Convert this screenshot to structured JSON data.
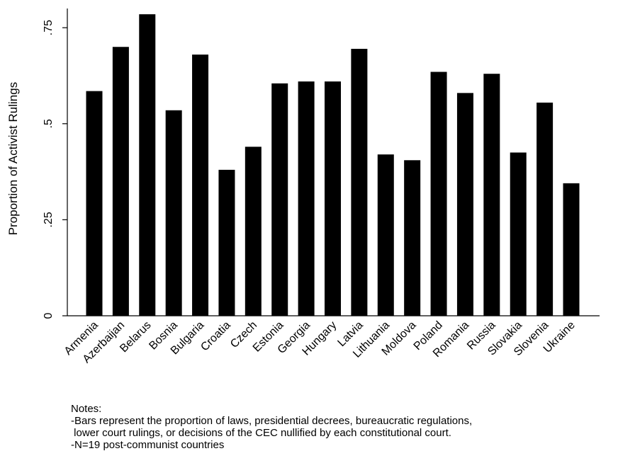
{
  "chart_data": {
    "type": "bar",
    "ylabel": "Proportion of Activist Rulings",
    "xlabel": "",
    "ylim": [
      0,
      0.8
    ],
    "yticks": [
      0,
      0.25,
      0.5,
      0.75
    ],
    "ytick_labels": [
      "0",
      ".25",
      ".5",
      ".75"
    ],
    "grid": false,
    "bar_color": "#000000",
    "categories": [
      "Armenia",
      "Azerbaijan",
      "Belarus",
      "Bosnia",
      "Bulgaria",
      "Croatia",
      "Czech",
      "Estonia",
      "Georgia",
      "Hungary",
      "Latvia",
      "Lithuania",
      "Moldova",
      "Poland",
      "Romania",
      "Russia",
      "Slovakia",
      "Slovenia",
      "Ukraine"
    ],
    "values": [
      0.585,
      0.7,
      0.785,
      0.535,
      0.68,
      0.38,
      0.44,
      0.605,
      0.61,
      0.61,
      0.695,
      0.42,
      0.405,
      0.635,
      0.58,
      0.63,
      0.425,
      0.555,
      0.345
    ]
  },
  "notes": {
    "heading": "Notes:",
    "line1": "-Bars represent the proportion of laws, presidential decrees, bureaucratic regulations,",
    "line2": " lower court rulings, or decisions of the CEC nullified by each constitutional court.",
    "line3": "-N=19 post-communist countries"
  }
}
